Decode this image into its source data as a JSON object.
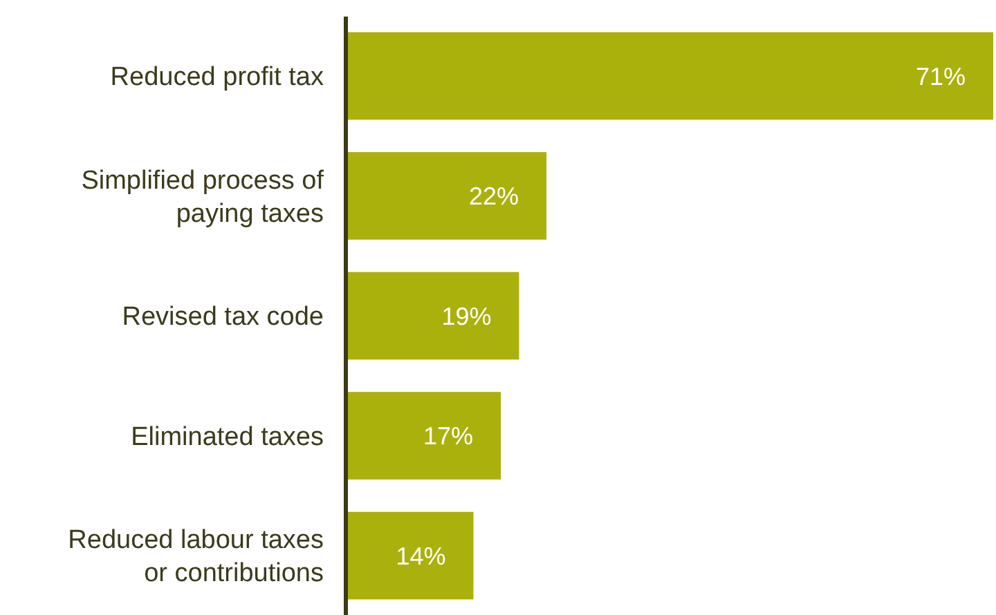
{
  "chart_data": {
    "type": "bar",
    "orientation": "horizontal",
    "categories": [
      "Reduced profit tax",
      "Simplified process of paying taxes",
      "Revised tax code",
      "Eliminated taxes",
      "Reduced labour taxes or contributions"
    ],
    "values": [
      71,
      22,
      19,
      17,
      14
    ],
    "value_labels": [
      "71%",
      "22%",
      "19%",
      "17%",
      "14%"
    ],
    "color": "#abb10c"
  }
}
